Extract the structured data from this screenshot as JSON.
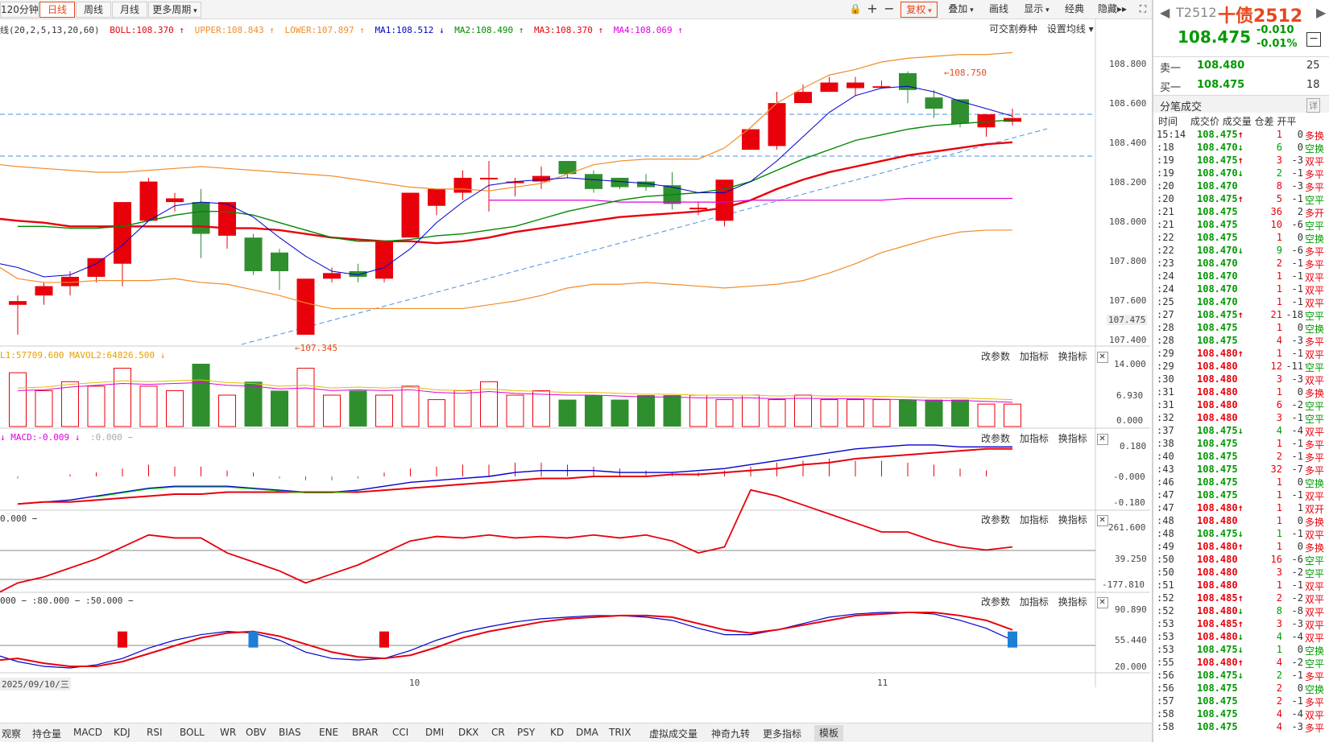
{
  "toolbar": {
    "left_buttons": [
      "120分钟",
      "日线",
      "周线",
      "月线",
      "更多周期"
    ],
    "active": "日线",
    "right_buttons": [
      "复权",
      "叠加",
      "画线",
      "显示",
      "经典",
      "隐藏"
    ]
  },
  "main": {
    "legend": [
      {
        "text": "线(20,2,5,13,20,60)",
        "color": "#333333"
      },
      {
        "text": "BOLL:108.370",
        "color": "#e8000b",
        "arrow": "↑"
      },
      {
        "text": "UPPER:108.843",
        "color": "#f28c28",
        "arrow": "↑"
      },
      {
        "text": "LOWER:107.897",
        "color": "#f28c28",
        "arrow": "↑"
      },
      {
        "text": "MA1:108.512",
        "color": "#0000cc",
        "arrow": "↓"
      },
      {
        "text": "MA2:108.490",
        "color": "#008800",
        "arrow": "↑"
      },
      {
        "text": "MA3:108.370",
        "color": "#e8000b",
        "arrow": "↑"
      },
      {
        "text": "MA4:108.069",
        "color": "#e000e0",
        "arrow": "↑"
      }
    ],
    "right_links": [
      "可交割券种",
      "设置均线"
    ],
    "yaxis": [
      "108.800",
      "108.600",
      "108.400",
      "108.200",
      "108.000",
      "107.800",
      "107.600",
      "107.475",
      "107.400"
    ],
    "high_label": "108.750",
    "low_label": "107.345"
  },
  "panels": {
    "vol_legend": "L1:57709.600  MAVOL2:64826.500 ↓",
    "vol_axis": [
      "14.000",
      "6.930",
      "0.000"
    ],
    "macd_legend": "MACD:-0.009 ↓",
    "macd_axis": [
      "0.180",
      "-0.000",
      "-0.180"
    ],
    "cci_legend": "0.000 −",
    "cci_axis": [
      "261.600",
      "39.250",
      "-177.810"
    ],
    "kdj_legend": "000 − :80.000 − :50.000 −",
    "kdj_axis": [
      "90.890",
      "55.440",
      "20.000"
    ],
    "controls": [
      "改参数",
      "加指标",
      "换指标"
    ]
  },
  "xaxis": {
    "date": "2025/09/10/三",
    "labels": [
      "10",
      "11"
    ]
  },
  "bottom_tabs": [
    "观察",
    "持仓量",
    "MACD",
    "KDJ",
    "RSI",
    "BOLL",
    "WR",
    "OBV",
    "BIAS",
    "ENE",
    "BRAR",
    "CCI",
    "DMI",
    "DKX",
    "CR",
    "PSY",
    "KD",
    "DMA",
    "TRIX",
    "虚拟成交量",
    "神奇九转",
    "更多指标",
    "模板"
  ],
  "bottom_active": "模板",
  "quote": {
    "code": "T2512",
    "name": "十债2512",
    "price": "108.475",
    "change": "-0.010",
    "change_pct": "-0.01%",
    "sell_label": "卖一",
    "sell_price": "108.480",
    "sell_vol": "25",
    "buy_label": "买一",
    "buy_price": "108.475",
    "buy_vol": "18",
    "section_title": "分笔成交",
    "section_btn": "详",
    "col_headers": [
      "时间",
      "成交价",
      "成交量",
      "仓差",
      "开平"
    ]
  },
  "ticks": [
    [
      "15:14",
      "108.475",
      "↑",
      "1",
      "0",
      "多换"
    ],
    [
      ":18",
      "108.470",
      "↓",
      "6",
      "0",
      "空换"
    ],
    [
      ":19",
      "108.475",
      "↑",
      "3",
      "-3",
      "双平"
    ],
    [
      ":19",
      "108.470",
      "↓",
      "2",
      "-1",
      "多平"
    ],
    [
      ":20",
      "108.470",
      "",
      "8",
      "-3",
      "多平"
    ],
    [
      ":20",
      "108.475",
      "↑",
      "5",
      "-1",
      "空平"
    ],
    [
      ":21",
      "108.475",
      "",
      "36",
      "2",
      "多开"
    ],
    [
      ":21",
      "108.475",
      "",
      "10",
      "-6",
      "空平"
    ],
    [
      ":22",
      "108.475",
      "",
      "1",
      "0",
      "空换"
    ],
    [
      ":22",
      "108.470",
      "↓",
      "9",
      "-6",
      "多平"
    ],
    [
      ":23",
      "108.470",
      "",
      "2",
      "-1",
      "多平"
    ],
    [
      ":24",
      "108.470",
      "",
      "1",
      "-1",
      "双平"
    ],
    [
      ":24",
      "108.470",
      "",
      "1",
      "-1",
      "双平"
    ],
    [
      ":25",
      "108.470",
      "",
      "1",
      "-1",
      "双平"
    ],
    [
      ":27",
      "108.475",
      "↑",
      "21",
      "-18",
      "空平"
    ],
    [
      ":28",
      "108.475",
      "",
      "1",
      "0",
      "空换"
    ],
    [
      ":28",
      "108.475",
      "",
      "4",
      "-3",
      "多平"
    ],
    [
      ":29",
      "108.480",
      "↑",
      "1",
      "-1",
      "双平"
    ],
    [
      ":29",
      "108.480",
      "",
      "12",
      "-11",
      "空平"
    ],
    [
      ":30",
      "108.480",
      "",
      "3",
      "-3",
      "双平"
    ],
    [
      ":31",
      "108.480",
      "",
      "1",
      "0",
      "多换"
    ],
    [
      ":31",
      "108.480",
      "",
      "6",
      "-2",
      "空平"
    ],
    [
      ":32",
      "108.480",
      "",
      "3",
      "-1",
      "空平"
    ],
    [
      ":37",
      "108.475",
      "↓",
      "4",
      "-4",
      "双平"
    ],
    [
      ":38",
      "108.475",
      "",
      "1",
      "-1",
      "多平"
    ],
    [
      ":40",
      "108.475",
      "",
      "2",
      "-1",
      "多平"
    ],
    [
      ":43",
      "108.475",
      "",
      "32",
      "-7",
      "多平"
    ],
    [
      ":46",
      "108.475",
      "",
      "1",
      "0",
      "空换"
    ],
    [
      ":47",
      "108.475",
      "",
      "1",
      "-1",
      "双平"
    ],
    [
      ":47",
      "108.480",
      "↑",
      "1",
      "1",
      "双开"
    ],
    [
      ":48",
      "108.480",
      "",
      "1",
      "0",
      "多换"
    ],
    [
      ":48",
      "108.475",
      "↓",
      "1",
      "-1",
      "双平"
    ],
    [
      ":49",
      "108.480",
      "↑",
      "1",
      "0",
      "多换"
    ],
    [
      ":50",
      "108.480",
      "",
      "16",
      "-6",
      "空平"
    ],
    [
      ":50",
      "108.480",
      "",
      "3",
      "-2",
      "空平"
    ],
    [
      ":51",
      "108.480",
      "",
      "1",
      "-1",
      "双平"
    ],
    [
      ":52",
      "108.485",
      "↑",
      "2",
      "-2",
      "双平"
    ],
    [
      ":52",
      "108.480",
      "↓",
      "8",
      "-8",
      "双平"
    ],
    [
      ":53",
      "108.485",
      "↑",
      "3",
      "-3",
      "双平"
    ],
    [
      ":53",
      "108.480",
      "↓",
      "4",
      "-4",
      "双平"
    ],
    [
      ":53",
      "108.475",
      "↓",
      "1",
      "0",
      "空换"
    ],
    [
      ":55",
      "108.480",
      "↑",
      "4",
      "-2",
      "空平"
    ],
    [
      ":56",
      "108.475",
      "↓",
      "2",
      "-1",
      "多平"
    ],
    [
      ":56",
      "108.475",
      "",
      "2",
      "0",
      "空换"
    ],
    [
      ":57",
      "108.475",
      "",
      "2",
      "-1",
      "多平"
    ],
    [
      ":58",
      "108.475",
      "",
      "4",
      "-4",
      "双平"
    ],
    [
      ":58",
      "108.475",
      "",
      "4",
      "-3",
      "多平"
    ]
  ],
  "colors": {
    "up": "#e8000b",
    "down": "#2f8f2f",
    "accent": "#e8471c"
  }
}
